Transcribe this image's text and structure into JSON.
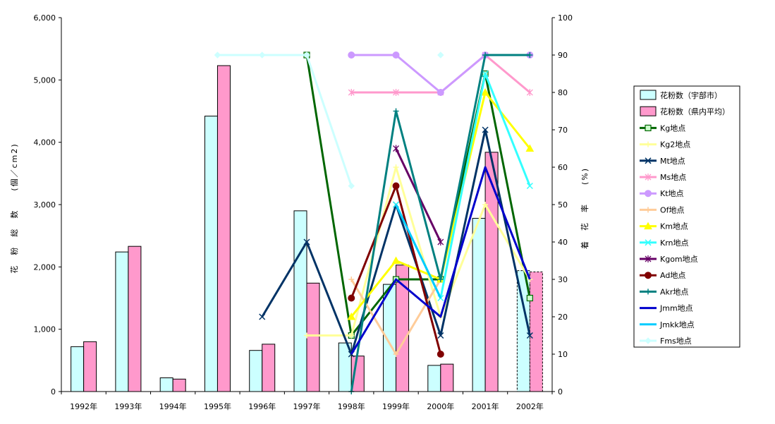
{
  "chart_data": {
    "type": "bar",
    "categories": [
      "1992年",
      "1993年",
      "1994年",
      "1995年",
      "1996年",
      "1997年",
      "1998年",
      "1999年",
      "2000年",
      "2001年",
      "2002年"
    ],
    "ylabel": "花　粉　総　数　　(個／cm2)",
    "y2label": "着　花　率　　(%)",
    "ylim": [
      0,
      6000
    ],
    "y2lim": [
      0,
      100
    ],
    "yticks": [
      "0",
      "1,000",
      "2,000",
      "3,000",
      "4,000",
      "5,000",
      "6,000"
    ],
    "y2ticks": [
      "0",
      "10",
      "20",
      "30",
      "40",
      "50",
      "60",
      "70",
      "80",
      "90",
      "100"
    ],
    "legend_position": "right",
    "bar_series": [
      {
        "name": "花粉数（宇部市）",
        "color": "#ccffff",
        "values": [
          720,
          2240,
          220,
          4420,
          660,
          2900,
          780,
          1720,
          420,
          2780,
          1940
        ]
      },
      {
        "name": "花粉数（県内平均）",
        "color": "#ff99cc",
        "values": [
          800,
          2330,
          200,
          5230,
          760,
          1740,
          570,
          2030,
          440,
          3840,
          1920
        ]
      }
    ],
    "line_series": [
      {
        "name": "Kg地点",
        "color": "#006600",
        "marker": "square",
        "values": [
          null,
          null,
          null,
          null,
          null,
          90,
          15,
          30,
          30,
          85,
          25
        ]
      },
      {
        "name": "Kg2地点",
        "color": "#ffff99",
        "marker": "plus",
        "values": [
          null,
          null,
          null,
          null,
          null,
          15,
          15,
          60,
          20,
          50,
          30
        ]
      },
      {
        "name": "Mt地点",
        "color": "#003366",
        "marker": "x",
        "values": [
          null,
          null,
          null,
          null,
          20,
          40,
          10,
          50,
          15,
          70,
          15
        ]
      },
      {
        "name": "Ms地点",
        "color": "#ff99cc",
        "marker": "star",
        "values": [
          null,
          null,
          null,
          null,
          null,
          null,
          80,
          80,
          80,
          90,
          80
        ]
      },
      {
        "name": "Kt地点",
        "color": "#cc99ff",
        "marker": "circle",
        "values": [
          null,
          null,
          null,
          null,
          null,
          null,
          90,
          90,
          80,
          90,
          90
        ]
      },
      {
        "name": "Of地点",
        "color": "#ffcc99",
        "marker": "plus",
        "values": [
          null,
          null,
          null,
          null,
          null,
          null,
          30,
          10,
          30,
          null,
          null
        ]
      },
      {
        "name": "Km地点",
        "color": "#ffff00",
        "marker": "triangle",
        "values": [
          null,
          null,
          null,
          null,
          null,
          null,
          20,
          35,
          30,
          80,
          65
        ]
      },
      {
        "name": "Krn地点",
        "color": "#33ffff",
        "marker": "x",
        "values": [
          null,
          null,
          null,
          null,
          null,
          null,
          null,
          50,
          25,
          85,
          55
        ]
      },
      {
        "name": "Kgom地点",
        "color": "#660066",
        "marker": "star",
        "values": [
          null,
          null,
          null,
          null,
          null,
          null,
          null,
          65,
          40,
          null,
          null
        ]
      },
      {
        "name": "Ad地点",
        "color": "#800000",
        "marker": "circle",
        "values": [
          null,
          null,
          null,
          null,
          null,
          null,
          25,
          55,
          10,
          null,
          null
        ]
      },
      {
        "name": "Akr地点",
        "color": "#008080",
        "marker": "plus",
        "values": [
          null,
          null,
          null,
          null,
          null,
          null,
          0,
          75,
          30,
          90,
          90
        ]
      },
      {
        "name": "Jmm地点",
        "color": "#0000cc",
        "marker": "none",
        "values": [
          null,
          null,
          null,
          null,
          null,
          null,
          10,
          30,
          20,
          60,
          30
        ]
      },
      {
        "name": "Jmkk地点",
        "color": "#00ccff",
        "marker": "none",
        "values": [
          null,
          null,
          null,
          null,
          null,
          null,
          null,
          50,
          25,
          null,
          null
        ]
      },
      {
        "name": "Fms地点",
        "color": "#ccffff",
        "marker": "diamond",
        "values": [
          null,
          null,
          null,
          90,
          90,
          90,
          55,
          null,
          90,
          null,
          null
        ]
      }
    ]
  }
}
